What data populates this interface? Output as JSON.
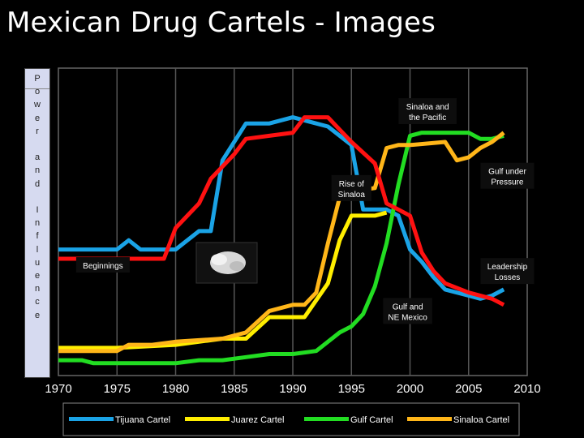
{
  "title": "Mexican Drug Cartels - Images",
  "chart_data": {
    "type": "line",
    "ylabel": "Power and Influence",
    "xlim": [
      1970,
      2010
    ],
    "xticks": [
      1970,
      1975,
      1980,
      1985,
      1990,
      1995,
      2000,
      2005,
      2010
    ],
    "grid": true,
    "legend_position": "bottom",
    "series": [
      {
        "name": "Tijuana Cartel",
        "color": "#1aa3e6",
        "points": [
          [
            1970,
            0.41
          ],
          [
            1975,
            0.41
          ],
          [
            1976,
            0.44
          ],
          [
            1977,
            0.41
          ],
          [
            1980,
            0.41
          ],
          [
            1982,
            0.47
          ],
          [
            1983,
            0.47
          ],
          [
            1984,
            0.7
          ],
          [
            1986,
            0.82
          ],
          [
            1988,
            0.82
          ],
          [
            1990,
            0.84
          ],
          [
            1991,
            0.83
          ],
          [
            1993,
            0.81
          ],
          [
            1994,
            0.78
          ],
          [
            1995,
            0.75
          ],
          [
            1996,
            0.54
          ],
          [
            1998,
            0.54
          ],
          [
            1999,
            0.52
          ],
          [
            2000,
            0.41
          ],
          [
            2001,
            0.37
          ],
          [
            2002,
            0.32
          ],
          [
            2003,
            0.28
          ],
          [
            2005,
            0.26
          ],
          [
            2006,
            0.25
          ],
          [
            2007,
            0.26
          ],
          [
            2008,
            0.28
          ]
        ]
      },
      {
        "name": "Juarez Cartel",
        "color": "#ffee00",
        "points": [
          [
            1970,
            0.09
          ],
          [
            1975,
            0.09
          ],
          [
            1980,
            0.1
          ],
          [
            1982,
            0.11
          ],
          [
            1984,
            0.12
          ],
          [
            1986,
            0.12
          ],
          [
            1988,
            0.19
          ],
          [
            1990,
            0.19
          ],
          [
            1991,
            0.19
          ],
          [
            1993,
            0.3
          ],
          [
            1994,
            0.44
          ],
          [
            1995,
            0.52
          ],
          [
            1997,
            0.52
          ],
          [
            1998,
            0.53
          ]
        ]
      },
      {
        "name": "Gulf Cartel",
        "color": "#22dd22",
        "points": [
          [
            1970,
            0.05
          ],
          [
            1972,
            0.05
          ],
          [
            1973,
            0.04
          ],
          [
            1976,
            0.04
          ],
          [
            1980,
            0.04
          ],
          [
            1982,
            0.05
          ],
          [
            1984,
            0.05
          ],
          [
            1986,
            0.06
          ],
          [
            1988,
            0.07
          ],
          [
            1990,
            0.07
          ],
          [
            1992,
            0.08
          ],
          [
            1994,
            0.14
          ],
          [
            1995,
            0.16
          ],
          [
            1996,
            0.2
          ],
          [
            1997,
            0.29
          ],
          [
            1998,
            0.43
          ],
          [
            1999,
            0.62
          ],
          [
            2000,
            0.78
          ],
          [
            2001,
            0.79
          ],
          [
            2003,
            0.79
          ],
          [
            2005,
            0.79
          ],
          [
            2006,
            0.77
          ],
          [
            2007,
            0.77
          ],
          [
            2008,
            0.78
          ]
        ]
      },
      {
        "name": "Sinaloa Cartel",
        "color": "#ffb619",
        "points": [
          [
            1970,
            0.08
          ],
          [
            1972,
            0.08
          ],
          [
            1973,
            0.08
          ],
          [
            1975,
            0.08
          ],
          [
            1976,
            0.1
          ],
          [
            1978,
            0.1
          ],
          [
            1980,
            0.11
          ],
          [
            1984,
            0.12
          ],
          [
            1986,
            0.14
          ],
          [
            1988,
            0.21
          ],
          [
            1990,
            0.23
          ],
          [
            1991,
            0.23
          ],
          [
            1992,
            0.27
          ],
          [
            1993,
            0.43
          ],
          [
            1994,
            0.58
          ],
          [
            1995,
            0.6
          ],
          [
            1997,
            0.61
          ],
          [
            1998,
            0.74
          ],
          [
            1999,
            0.75
          ],
          [
            2000,
            0.75
          ],
          [
            2003,
            0.76
          ],
          [
            2004,
            0.7
          ],
          [
            2005,
            0.71
          ],
          [
            2006,
            0.74
          ],
          [
            2007,
            0.76
          ],
          [
            2008,
            0.79
          ]
        ]
      },
      {
        "name": "",
        "color": "#ff1111",
        "points": [
          [
            1970,
            0.38
          ],
          [
            1974,
            0.38
          ],
          [
            1975,
            0.38
          ],
          [
            1979,
            0.38
          ],
          [
            1980,
            0.48
          ],
          [
            1982,
            0.56
          ],
          [
            1983,
            0.64
          ],
          [
            1985,
            0.72
          ],
          [
            1986,
            0.77
          ],
          [
            1988,
            0.78
          ],
          [
            1990,
            0.79
          ],
          [
            1991,
            0.84
          ],
          [
            1993,
            0.84
          ],
          [
            1994,
            0.8
          ],
          [
            1995,
            0.76
          ],
          [
            1997,
            0.69
          ],
          [
            1998,
            0.56
          ],
          [
            1999,
            0.54
          ],
          [
            2000,
            0.52
          ],
          [
            2001,
            0.4
          ],
          [
            2002,
            0.34
          ],
          [
            2003,
            0.3
          ],
          [
            2005,
            0.27
          ],
          [
            2007,
            0.25
          ],
          [
            2008,
            0.23
          ]
        ]
      }
    ],
    "annotations": [
      {
        "text": [
          "Sinaloa and",
          "the Pacific"
        ],
        "x": 2001.5,
        "y": 0.86
      },
      {
        "text": [
          "Gulf under",
          "Pressure"
        ],
        "x": 2008.3,
        "y": 0.65
      },
      {
        "text": [
          "Rise of",
          "Sinaloa"
        ],
        "x": 1995,
        "y": 0.61
      },
      {
        "text": [
          "Beginnings"
        ],
        "x": 1973.8,
        "y": 0.36
      },
      {
        "text": [
          "Leadership",
          "Losses"
        ],
        "x": 2008.3,
        "y": 0.34
      },
      {
        "text": [
          "Gulf and",
          "NE Mexico"
        ],
        "x": 1999.8,
        "y": 0.21
      }
    ],
    "image_caption": "white powder"
  }
}
